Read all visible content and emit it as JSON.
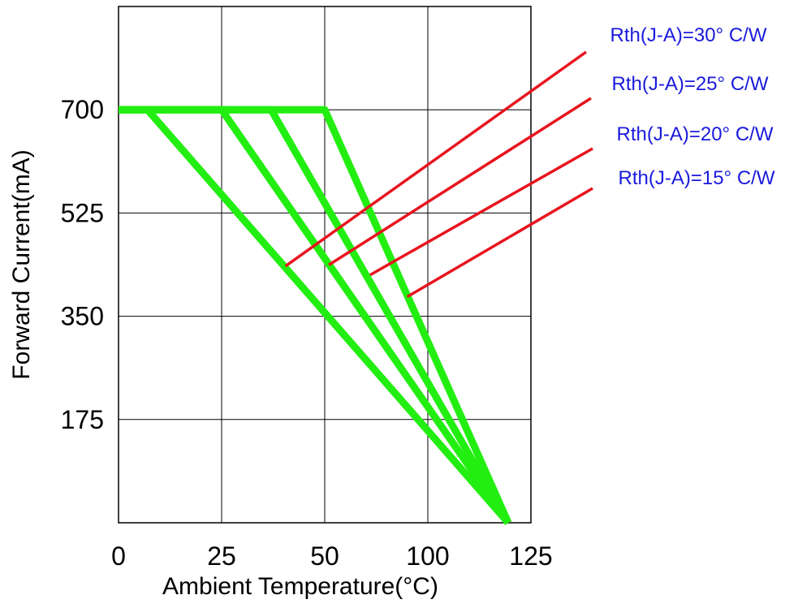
{
  "chart_data": {
    "type": "line",
    "title": "",
    "xlabel": "Ambient Temperature(°C)",
    "ylabel": "Forward Current(mA)",
    "xlim": [
      0,
      100
    ],
    "ylim": [
      0,
      875
    ],
    "x_tick_labels": [
      "0",
      "25",
      "50",
      "100",
      "125"
    ],
    "y_tick_labels": [
      "175",
      "350",
      "525",
      "700"
    ],
    "grid": true,
    "legend": "none",
    "series": [
      {
        "points": [
          [
            0,
            700
          ],
          [
            7,
            700
          ],
          [
            94.5,
            0
          ]
        ],
        "color": "#22ee11"
      },
      {
        "points": [
          [
            0,
            700
          ],
          [
            25,
            700
          ],
          [
            94.5,
            0
          ]
        ],
        "color": "#22ee11"
      },
      {
        "points": [
          [
            0,
            700
          ],
          [
            37,
            700
          ],
          [
            94.5,
            0
          ]
        ],
        "color": "#22ee11"
      },
      {
        "points": [
          [
            0,
            700
          ],
          [
            50,
            700
          ],
          [
            94.5,
            0
          ]
        ],
        "color": "#22ee11"
      }
    ],
    "annotations": [
      {
        "text": "Rth(J-A)=30° C/W",
        "x": 40.5,
        "y": 435,
        "color": "#1a1adc"
      },
      {
        "text": "Rth(J-A)=25° C/W",
        "x": 51,
        "y": 437,
        "color": "#1a1adc"
      },
      {
        "text": "Rth(J-A)=20° C/W",
        "x": 61,
        "y": 420,
        "color": "#1a1adc"
      },
      {
        "text": "Rth(J-A)=15° C/W",
        "x": 70,
        "y": 383,
        "color": "#1a1adc"
      }
    ],
    "annotation_line_color": "#e8141e"
  }
}
